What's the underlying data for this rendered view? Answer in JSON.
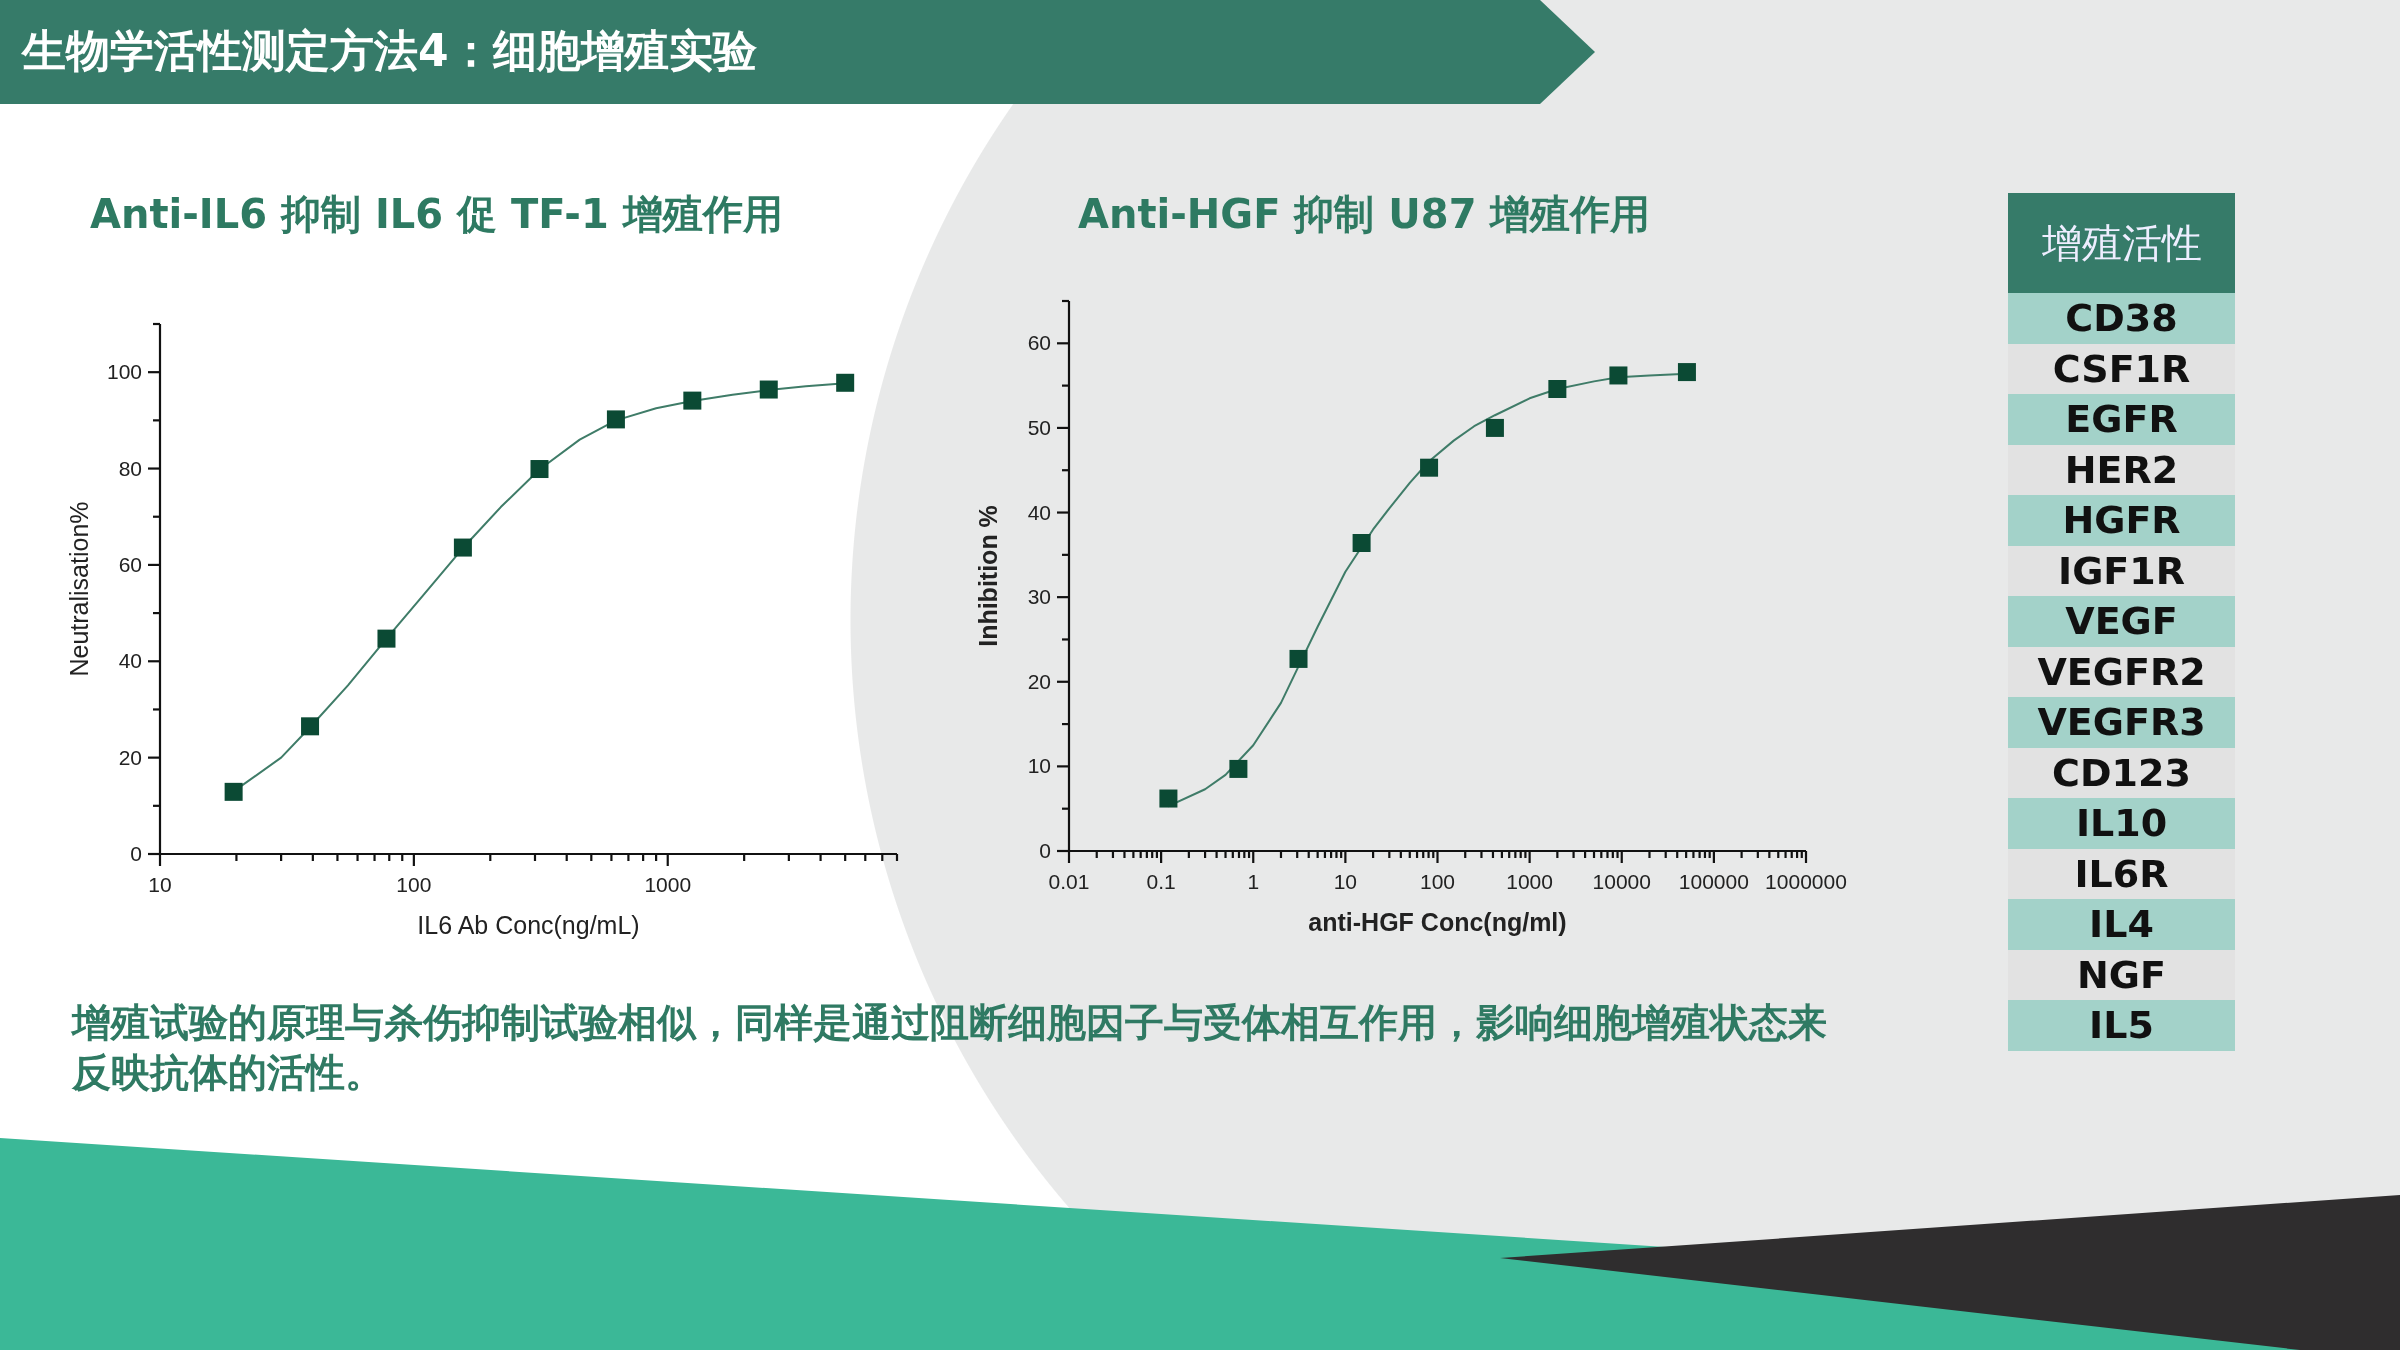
{
  "chart_data": [
    {
      "type": "other",
      "title": "生物学活性测定方法4：细胞增殖实验",
      "annotations": [
        "增殖试验的原理与杀伤抑制试验相似，同样是通过阻断细胞因子与受体相互作用，影响细胞增殖状态来反映抗体的活性。"
      ]
    },
    {
      "type": "scatter",
      "title": "Anti-IL6 抑制 IL6 促 TF-1 增殖作用",
      "xlabel": "IL6 Ab Conc(ng/mL)",
      "ylabel": "Neutralisation%",
      "log": "x",
      "xlim": [
        10,
        8000
      ],
      "ylim": [
        0,
        110
      ],
      "xticks": [
        10,
        100,
        1000
      ],
      "yticks": [
        0,
        20,
        40,
        60,
        80,
        100
      ],
      "grid": false,
      "series": [
        {
          "type": "line",
          "color": "#3f7c68",
          "marker": "none",
          "x": [
            19.5,
            30,
            39,
            55,
            78,
            110,
            156,
            220,
            312.5,
            450,
            625,
            900,
            1250,
            1800,
            2500,
            3500,
            5000
          ],
          "values": [
            13,
            20,
            26.3,
            35,
            44.7,
            54,
            63.5,
            72,
            79.8,
            86,
            90,
            92.5,
            94,
            95.3,
            96.3,
            97.1,
            97.7
          ]
        },
        {
          "type": "scatter",
          "color": "#0b4a34",
          "marker": "square",
          "x": [
            19.5,
            39,
            78,
            156,
            312.5,
            625,
            1250,
            2500,
            5000
          ],
          "values": [
            12.9,
            26.5,
            44.7,
            63.6,
            79.9,
            90.2,
            94.1,
            96.4,
            97.8
          ]
        }
      ]
    },
    {
      "type": "scatter",
      "title": "Anti-HGF 抑制 U87 增殖作用",
      "xlabel": "anti-HGF Conc(ng/ml)",
      "ylabel": "Inhibition %",
      "log": "x",
      "xlim": [
        0.01,
        1000000
      ],
      "ylim": [
        0,
        65
      ],
      "xticks": [
        0.01,
        0.1,
        1,
        10,
        100,
        1000,
        10000,
        100000,
        1000000
      ],
      "yticks": [
        0,
        10,
        20,
        30,
        40,
        50,
        60
      ],
      "grid": false,
      "series": [
        {
          "type": "line",
          "color": "#3f7c68",
          "marker": "none",
          "x": [
            0.12,
            0.3,
            0.5,
            1,
            2,
            3,
            5,
            10,
            20,
            30,
            50,
            80,
            150,
            250,
            420,
            1000,
            2000,
            5000,
            9200,
            20000,
            51000
          ],
          "values": [
            5.3,
            7.3,
            9,
            12.5,
            17.5,
            21.5,
            26.5,
            33,
            38,
            40.5,
            43.5,
            46,
            48.5,
            50.2,
            51.5,
            53.5,
            54.6,
            55.5,
            56,
            56.2,
            56.4
          ]
        },
        {
          "type": "scatter",
          "color": "#0b4a34",
          "marker": "square",
          "x": [
            0.12,
            0.69,
            3.1,
            15,
            81,
            420,
            2000,
            9200,
            51000
          ],
          "values": [
            6.2,
            9.7,
            22.7,
            36.4,
            45.3,
            50.0,
            54.6,
            56.2,
            56.6
          ]
        }
      ]
    },
    {
      "type": "other",
      "title": "增殖活性",
      "annotations": [
        "CD38",
        "CSF1R",
        "EGFR",
        "HER2",
        "HGFR",
        "IGF1R",
        "VEGF",
        "VEGFR2",
        "VEGFR3",
        "CD123",
        "IL10",
        "IL6R",
        "IL4",
        "NGF",
        "IL5"
      ]
    }
  ]
}
